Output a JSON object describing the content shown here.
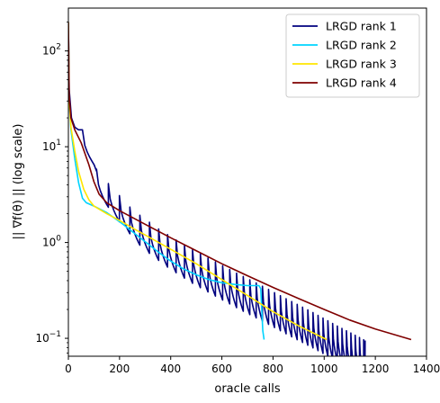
{
  "chart_data": {
    "type": "line",
    "title": "",
    "xlabel": "oracle calls",
    "ylabel": "|| ∇f(θ) || (log scale)",
    "xlim": [
      0,
      1400
    ],
    "ylim": [
      0.065,
      280
    ],
    "yscale": "log",
    "grid": false,
    "legend_position": "top-right",
    "x_ticks": [
      0,
      200,
      400,
      600,
      800,
      1000,
      1200,
      1400
    ],
    "x_tick_labels": [
      "0",
      "200",
      "400",
      "600",
      "800",
      "1000",
      "1200",
      "1400"
    ],
    "y_major_ticks": [
      0.1,
      1,
      10,
      100
    ],
    "y_tick_labels": [
      "10",
      "10",
      "10",
      "10"
    ],
    "y_tick_exponents": [
      "−1",
      "0",
      "1",
      "2"
    ],
    "series": [
      {
        "name": "LRGD rank 1",
        "color": "#00007f",
        "oscillation": {
          "period_start": 55,
          "period_end": 16,
          "spike_ratio": 2.5
        },
        "envelope": [
          [
            0,
            200
          ],
          [
            3,
            40
          ],
          [
            12,
            20
          ],
          [
            25,
            16
          ],
          [
            40,
            15
          ],
          [
            55,
            15
          ],
          [
            90,
            6.8
          ],
          [
            150,
            4.3
          ],
          [
            250,
            2.2
          ],
          [
            350,
            1.4
          ],
          [
            450,
            0.95
          ],
          [
            550,
            0.68
          ],
          [
            650,
            0.49
          ],
          [
            750,
            0.36
          ],
          [
            850,
            0.26
          ],
          [
            950,
            0.19
          ],
          [
            1050,
            0.135
          ],
          [
            1160,
            0.095
          ]
        ]
      },
      {
        "name": "LRGD rank 2",
        "color": "#00d4ff",
        "points": [
          [
            0,
            200
          ],
          [
            3,
            30
          ],
          [
            10,
            15
          ],
          [
            25,
            7.5
          ],
          [
            40,
            4.2
          ],
          [
            55,
            2.9
          ],
          [
            70,
            2.6
          ],
          [
            100,
            2.4
          ],
          [
            150,
            2.05
          ],
          [
            200,
            1.65
          ],
          [
            250,
            1.3
          ],
          [
            300,
            1.02
          ],
          [
            350,
            0.8
          ],
          [
            400,
            0.64
          ],
          [
            450,
            0.53
          ],
          [
            500,
            0.46
          ],
          [
            550,
            0.41
          ],
          [
            600,
            0.38
          ],
          [
            650,
            0.365
          ],
          [
            700,
            0.355
          ],
          [
            745,
            0.355
          ],
          [
            752,
            0.33
          ],
          [
            756,
            0.2
          ],
          [
            760,
            0.12
          ],
          [
            765,
            0.097
          ]
        ]
      },
      {
        "name": "LRGD rank 3",
        "color": "#ffe600",
        "points": [
          [
            0,
            200
          ],
          [
            3,
            30
          ],
          [
            10,
            16
          ],
          [
            25,
            9
          ],
          [
            40,
            5.5
          ],
          [
            60,
            3.6
          ],
          [
            80,
            2.8
          ],
          [
            100,
            2.4
          ],
          [
            150,
            2.0
          ],
          [
            200,
            1.7
          ],
          [
            250,
            1.42
          ],
          [
            300,
            1.2
          ],
          [
            400,
            0.85
          ],
          [
            500,
            0.6
          ],
          [
            600,
            0.41
          ],
          [
            700,
            0.28
          ],
          [
            800,
            0.19
          ],
          [
            900,
            0.135
          ],
          [
            1010,
            0.097
          ]
        ]
      },
      {
        "name": "LRGD rank 4",
        "color": "#7f0000",
        "points": [
          [
            0,
            200
          ],
          [
            3,
            35
          ],
          [
            10,
            20
          ],
          [
            25,
            15
          ],
          [
            50,
            11
          ],
          [
            80,
            6.5
          ],
          [
            100,
            4.3
          ],
          [
            120,
            3.2
          ],
          [
            150,
            2.6
          ],
          [
            200,
            2.15
          ],
          [
            300,
            1.55
          ],
          [
            400,
            1.12
          ],
          [
            500,
            0.82
          ],
          [
            600,
            0.6
          ],
          [
            700,
            0.45
          ],
          [
            800,
            0.34
          ],
          [
            900,
            0.26
          ],
          [
            1000,
            0.2
          ],
          [
            1100,
            0.155
          ],
          [
            1200,
            0.125
          ],
          [
            1340,
            0.097
          ]
        ]
      }
    ]
  }
}
